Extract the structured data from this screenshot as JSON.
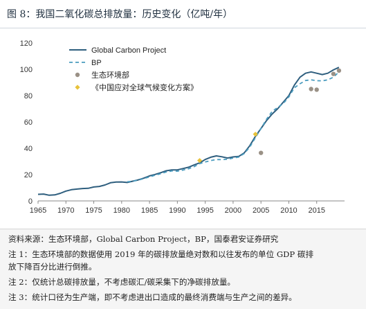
{
  "title": "图 8：我国二氧化碳总排放量：历史变化（亿吨/年）",
  "chart_data": {
    "type": "line",
    "title": "",
    "xlabel": "",
    "ylabel": "",
    "xlim": [
      1965,
      2020
    ],
    "ylim": [
      0,
      120
    ],
    "x_ticks": [
      1965,
      1970,
      1975,
      1980,
      1985,
      1990,
      1995,
      2000,
      2005,
      2010,
      2015
    ],
    "y_ticks": [
      0,
      20,
      40,
      60,
      80,
      100,
      120
    ],
    "grid": false,
    "legend_placement": "top-left",
    "series": [
      {
        "name": "Global Carbon Project",
        "style": "solid",
        "color": "#2e5e7e",
        "points": [
          [
            1965,
            5
          ],
          [
            1966,
            5.2
          ],
          [
            1967,
            4.3
          ],
          [
            1968,
            4.6
          ],
          [
            1969,
            5.8
          ],
          [
            1970,
            7.5
          ],
          [
            1971,
            8.5
          ],
          [
            1972,
            9
          ],
          [
            1973,
            9.4
          ],
          [
            1974,
            9.6
          ],
          [
            1975,
            10.6
          ],
          [
            1976,
            11
          ],
          [
            1977,
            12.1
          ],
          [
            1978,
            13.8
          ],
          [
            1979,
            14.3
          ],
          [
            1980,
            14.4
          ],
          [
            1981,
            14
          ],
          [
            1982,
            15
          ],
          [
            1983,
            16
          ],
          [
            1984,
            17.3
          ],
          [
            1985,
            19
          ],
          [
            1986,
            20.1
          ],
          [
            1987,
            21.4
          ],
          [
            1988,
            22.9
          ],
          [
            1989,
            23.5
          ],
          [
            1990,
            23.6
          ],
          [
            1991,
            24.6
          ],
          [
            1992,
            25.6
          ],
          [
            1993,
            27.3
          ],
          [
            1994,
            28.9
          ],
          [
            1995,
            31.5
          ],
          [
            1996,
            33.2
          ],
          [
            1997,
            34.2
          ],
          [
            1998,
            33.5
          ],
          [
            1999,
            32.6
          ],
          [
            2000,
            33.4
          ],
          [
            2001,
            33.8
          ],
          [
            2002,
            36.5
          ],
          [
            2003,
            42
          ],
          [
            2004,
            49
          ],
          [
            2005,
            55
          ],
          [
            2006,
            61
          ],
          [
            2007,
            66
          ],
          [
            2008,
            70
          ],
          [
            2009,
            75
          ],
          [
            2010,
            80
          ],
          [
            2011,
            88
          ],
          [
            2012,
            94
          ],
          [
            2013,
            97
          ],
          [
            2014,
            98
          ],
          [
            2015,
            97
          ],
          [
            2016,
            96
          ],
          [
            2017,
            97
          ],
          [
            2018,
            99.5
          ],
          [
            2019,
            101.5
          ]
        ]
      },
      {
        "name": "BP",
        "style": "dashed",
        "color": "#4a9cbf",
        "points": [
          [
            1981,
            14.5
          ],
          [
            1982,
            15
          ],
          [
            1983,
            15.8
          ],
          [
            1984,
            17
          ],
          [
            1985,
            18.2
          ],
          [
            1986,
            19.5
          ],
          [
            1987,
            20.7
          ],
          [
            1988,
            22
          ],
          [
            1989,
            22.8
          ],
          [
            1990,
            22.6
          ],
          [
            1991,
            23.4
          ],
          [
            1992,
            24.4
          ],
          [
            1993,
            26
          ],
          [
            1994,
            28.3
          ],
          [
            1995,
            29.6
          ],
          [
            1996,
            30.7
          ],
          [
            1997,
            31.4
          ],
          [
            1998,
            31.4
          ],
          [
            1999,
            31.6
          ],
          [
            2000,
            32.6
          ],
          [
            2001,
            33.3
          ],
          [
            2002,
            36
          ],
          [
            2003,
            41
          ],
          [
            2004,
            48
          ],
          [
            2005,
            55
          ],
          [
            2006,
            62
          ],
          [
            2007,
            68
          ],
          [
            2008,
            71
          ],
          [
            2009,
            74
          ],
          [
            2010,
            79
          ],
          [
            2011,
            86
          ],
          [
            2012,
            89
          ],
          [
            2013,
            91.5
          ],
          [
            2014,
            92
          ],
          [
            2015,
            91.3
          ],
          [
            2016,
            91.2
          ],
          [
            2017,
            92
          ],
          [
            2018,
            94
          ],
          [
            2019,
            98
          ]
        ]
      },
      {
        "name": "生态环境部",
        "style": "markers",
        "color": "#9a9186",
        "points": [
          [
            2005,
            36.5
          ],
          [
            2014,
            85
          ],
          [
            2015,
            84.5
          ],
          [
            2018,
            96.5
          ],
          [
            2019,
            99
          ]
        ]
      },
      {
        "name": "《中国应对全球气候变化方案》",
        "style": "markers",
        "color": "#e8c23a",
        "points": [
          [
            1994,
            30.7
          ],
          [
            2004,
            50.7
          ]
        ]
      }
    ]
  },
  "notes": [
    "资料来源：生态环境部，Global Carbon Project，BP，国泰君安证券研究",
    "注 1：生态环境部的数据使用 2019 年的碳排放量绝对数和以往发布的单位 GDP 碳排",
    "放下降百分比进行倒推。",
    "注 2：仅统计总碳排放量，不考虑碳汇/碳采集下的净碳排放量。",
    "注 3：统计口径为生产端，即不考虑进出口造成的最终消费端与生产之间的差异。"
  ]
}
